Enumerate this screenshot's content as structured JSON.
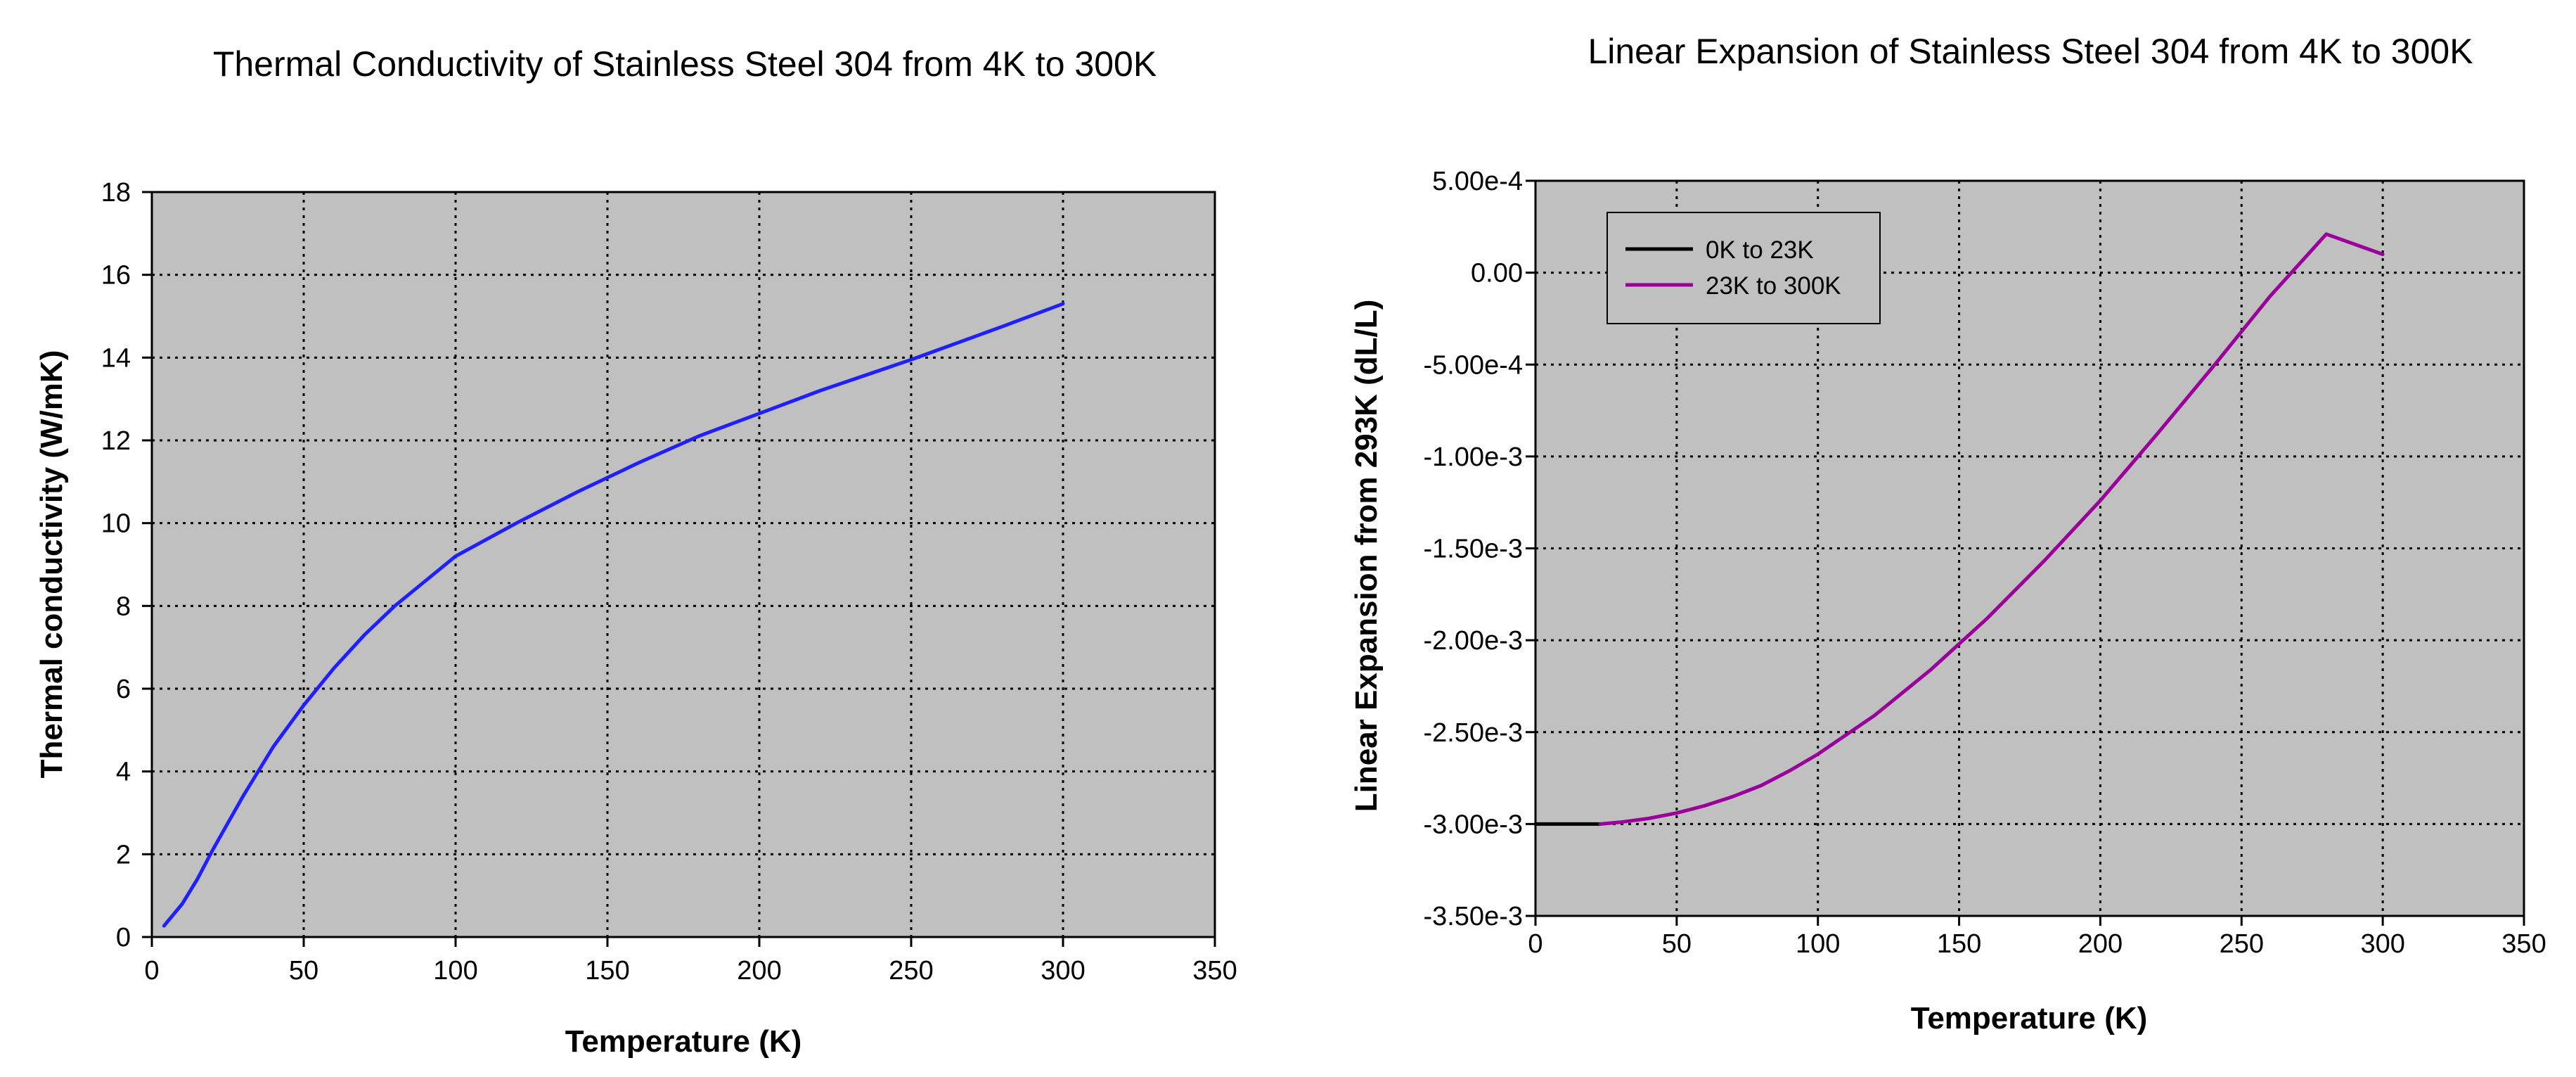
{
  "chart_data": [
    {
      "type": "line",
      "title": "Thermal Conductivity of Stainless Steel 304 from 4K to 300K",
      "xlabel": "Temperature (K)",
      "ylabel": "Thermal conductivity (W/mK)",
      "xlim": [
        0,
        350
      ],
      "ylim": [
        0,
        18
      ],
      "xticks": [
        0,
        50,
        100,
        150,
        200,
        250,
        300,
        350
      ],
      "yticks": [
        0,
        2,
        4,
        6,
        8,
        10,
        12,
        14,
        16,
        18
      ],
      "xtick_labels": [
        "0",
        "50",
        "100",
        "150",
        "200",
        "250",
        "300",
        "350"
      ],
      "ytick_labels": [
        "0",
        "2",
        "4",
        "6",
        "8",
        "10",
        "12",
        "14",
        "16",
        "18"
      ],
      "grid": true,
      "series": [
        {
          "name": "Thermal conductivity",
          "color": "#1f1fff",
          "x": [
            4,
            10,
            15,
            20,
            25,
            30,
            40,
            50,
            60,
            70,
            80,
            90,
            100,
            120,
            140,
            160,
            180,
            200,
            220,
            250,
            280,
            300
          ],
          "y": [
            0.27,
            0.8,
            1.4,
            2.1,
            2.75,
            3.4,
            4.6,
            5.6,
            6.5,
            7.3,
            8.0,
            8.6,
            9.2,
            10.0,
            10.75,
            11.45,
            12.1,
            12.65,
            13.2,
            13.95,
            14.75,
            15.3
          ]
        }
      ]
    },
    {
      "type": "line",
      "title": "Linear Expansion of Stainless Steel 304 from 4K to 300K",
      "xlabel": "Temperature (K)",
      "ylabel": "Linear Expansion from 293K (dL/L)",
      "xlim": [
        0,
        350
      ],
      "ylim": [
        -0.0035,
        0.0005
      ],
      "xticks": [
        0,
        50,
        100,
        150,
        200,
        250,
        300,
        350
      ],
      "yticks": [
        0.0005,
        0,
        -0.0005,
        -0.001,
        -0.0015,
        -0.002,
        -0.0025,
        -0.003,
        -0.0035
      ],
      "xtick_labels": [
        "0",
        "50",
        "100",
        "150",
        "200",
        "250",
        "300",
        "350"
      ],
      "ytick_labels": [
        "5.00e-4",
        "0.00",
        "-5.00e-4",
        "-1.00e-3",
        "-1.50e-3",
        "-2.00e-3",
        "-2.50e-3",
        "-3.00e-3",
        "-3.50e-3"
      ],
      "grid": true,
      "legend_position": "top-left",
      "series": [
        {
          "name": "0K to 23K",
          "color": "#000000",
          "x": [
            0,
            5,
            10,
            15,
            20,
            23
          ],
          "y": [
            -0.003,
            -0.003,
            -0.003,
            -0.003,
            -0.003,
            -0.003
          ]
        },
        {
          "name": "23K to 300K",
          "color": "#990099",
          "x": [
            23,
            30,
            40,
            50,
            60,
            70,
            80,
            90,
            100,
            120,
            140,
            160,
            180,
            200,
            220,
            240,
            260,
            280,
            300
          ],
          "y": [
            -0.003,
            -0.00299,
            -0.00297,
            -0.00294,
            -0.0029,
            -0.00285,
            -0.00279,
            -0.00271,
            -0.00262,
            -0.00241,
            -0.00216,
            -0.00188,
            -0.00157,
            -0.00124,
            -0.00088,
            -0.00051,
            -0.00013,
            0.00021,
            0.0001
          ]
        }
      ]
    }
  ]
}
